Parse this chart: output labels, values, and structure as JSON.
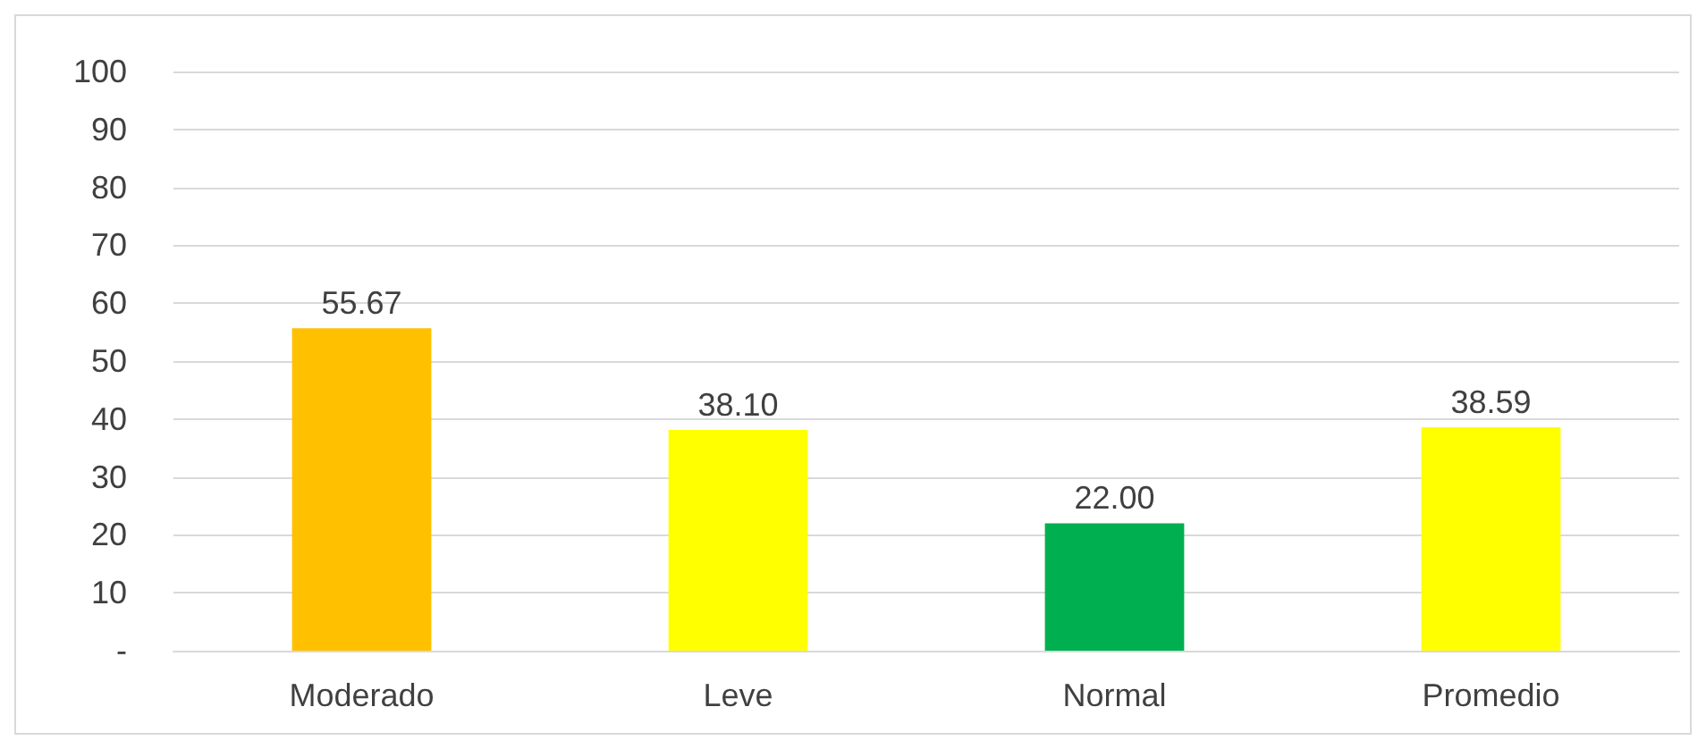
{
  "chart_data": {
    "type": "bar",
    "categories": [
      "Moderado",
      "Leve",
      "Normal",
      "Promedio"
    ],
    "values": [
      55.67,
      38.1,
      22.0,
      38.59
    ],
    "colors": [
      "#ffc000",
      "#ffff00",
      "#00b050",
      "#ffff00"
    ],
    "value_labels": [
      "55.67",
      "38.10",
      "22.00",
      "38.59"
    ],
    "ylim": [
      0,
      100
    ],
    "yticks": [
      {
        "value": 0,
        "label": "-"
      },
      10,
      20,
      30,
      40,
      50,
      60,
      70,
      80,
      90,
      100
    ],
    "grid": "y"
  }
}
